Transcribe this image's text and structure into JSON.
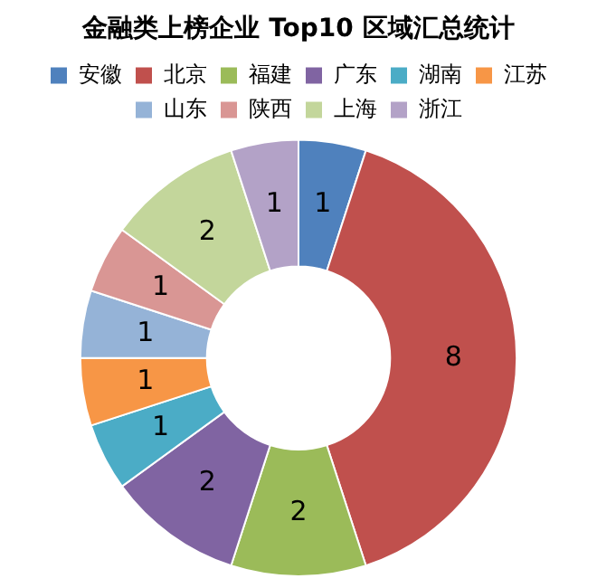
{
  "chart_data": {
    "type": "donut",
    "title": "金融类上榜企业 Top10 区域汇总统计",
    "categories": [
      "安徽",
      "北京",
      "福建",
      "广东",
      "湖南",
      "江苏",
      "山东",
      "陕西",
      "上海",
      "浙江"
    ],
    "values": [
      1,
      8,
      2,
      2,
      1,
      1,
      1,
      1,
      2,
      1
    ],
    "colors": [
      "#4f81bd",
      "#c0504d",
      "#9bbb59",
      "#8064a2",
      "#4bacc6",
      "#f79646",
      "#95b3d7",
      "#d99694",
      "#c3d69b",
      "#b3a2c7"
    ],
    "legend": "top",
    "data_labels": true
  }
}
